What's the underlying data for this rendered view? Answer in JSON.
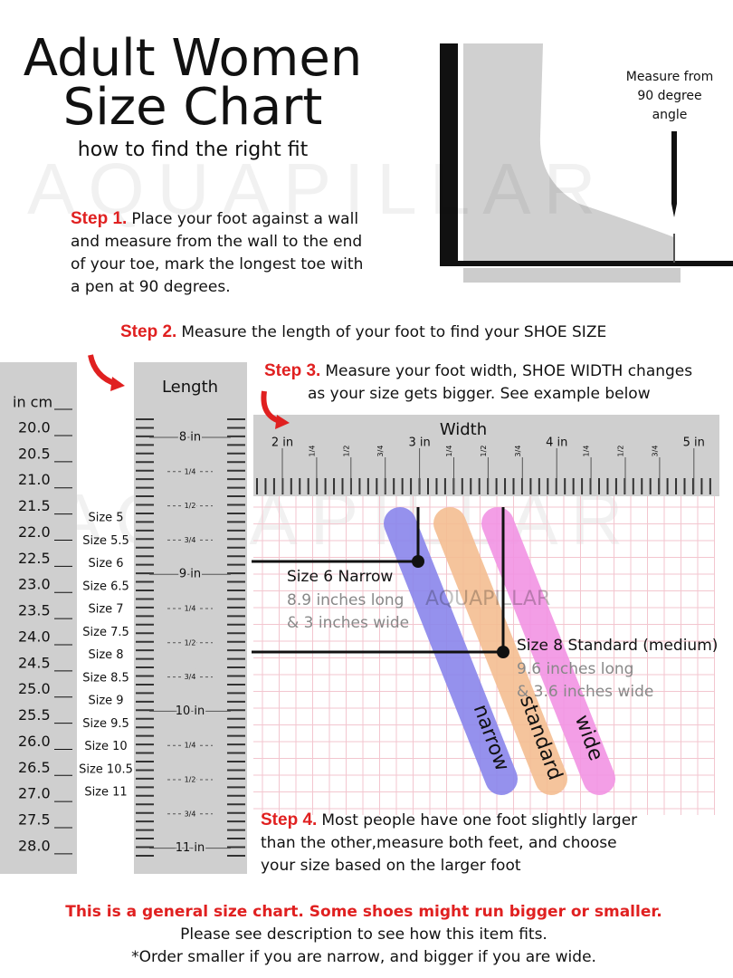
{
  "header": {
    "title_line1": "Adult Women",
    "title_line2": "Size Chart",
    "subtitle": "how to find the right fit"
  },
  "watermark": "AQUAPILLAR",
  "measure_note": [
    "Measure from",
    "90 degree",
    "angle"
  ],
  "steps": [
    {
      "label": "Step 1.",
      "lines": [
        "Place your foot against a wall",
        "and measure from the wall to the end",
        "of your toe, mark the longest toe with",
        "a pen at 90 degrees."
      ]
    },
    {
      "label": "Step 2.",
      "lines": [
        "Measure the length of your foot to find your SHOE SIZE"
      ]
    },
    {
      "label": "Step 3.",
      "lines": [
        "Measure your foot width, SHOE WIDTH changes",
        "as your size gets bigger. See example below"
      ]
    },
    {
      "label": "Step 4.",
      "lines": [
        "Most people have one foot slightly larger",
        "than the other,measure both feet, and choose",
        "your size based on the larger foot"
      ]
    }
  ],
  "cm_column": {
    "header": "in cm",
    "values": [
      "20.0",
      "20.5",
      "21.0",
      "21.5",
      "22.0",
      "22.5",
      "23.0",
      "23.5",
      "24.0",
      "24.5",
      "25.0",
      "25.5",
      "26.0",
      "26.5",
      "27.0",
      "27.5",
      "28.0"
    ]
  },
  "sizes": [
    "Size 5",
    "Size 5.5",
    "Size 6",
    "Size 6.5",
    "Size 7",
    "Size 7.5",
    "Size 8",
    "Size 8.5",
    "Size 9",
    "Size 9.5",
    "Size 10",
    "Size 10.5",
    "Size 11"
  ],
  "length_ruler": {
    "title": "Length",
    "labels": [
      "8 in",
      "1/4",
      "1/2",
      "3/4",
      "9 in",
      "1/4",
      "1/2",
      "3/4",
      "10 in",
      "1/4",
      "1/2",
      "3/4",
      "11 in"
    ]
  },
  "width_ruler": {
    "title": "Width",
    "labels": [
      "2 in",
      "1/4",
      "1/2",
      "3/4",
      "3 in",
      "1/4",
      "1/2",
      "3/4",
      "4 in",
      "1/4",
      "1/2",
      "3/4",
      "5 in"
    ]
  },
  "examples": [
    {
      "name": "Size 6 Narrow",
      "length": "8.9 inches long",
      "width": "& 3 inches wide"
    },
    {
      "name": "Size 8 Standard (medium)",
      "length": "9.6 inches long",
      "width": "& 3.6 inches wide"
    }
  ],
  "bands": [
    "narrow",
    "standard",
    "wide"
  ],
  "footer": {
    "warning": "This is a general size chart. Some shoes might run bigger or smaller.",
    "line2": "Please see description to see how this item fits.",
    "line3": "*Order smaller if you are narrow, and bigger if you are wide."
  }
}
